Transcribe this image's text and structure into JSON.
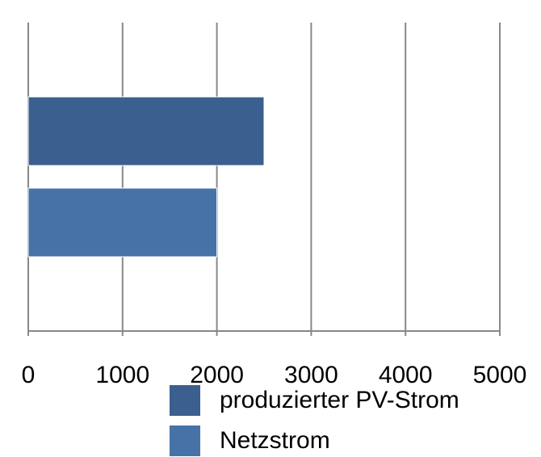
{
  "chart_data": {
    "type": "bar",
    "orientation": "horizontal",
    "categories": [
      null
    ],
    "series": [
      {
        "name": "produzierter PV-Strom",
        "color": "#3b5f8e",
        "values": [
          2500
        ]
      },
      {
        "name": "Netzstrom",
        "color": "#4672a8",
        "values": [
          2000
        ]
      }
    ],
    "xlim": [
      0,
      5000
    ],
    "xticks": [
      0,
      1000,
      2000,
      3000,
      4000,
      5000
    ],
    "grid": true,
    "legend": "bottom"
  }
}
